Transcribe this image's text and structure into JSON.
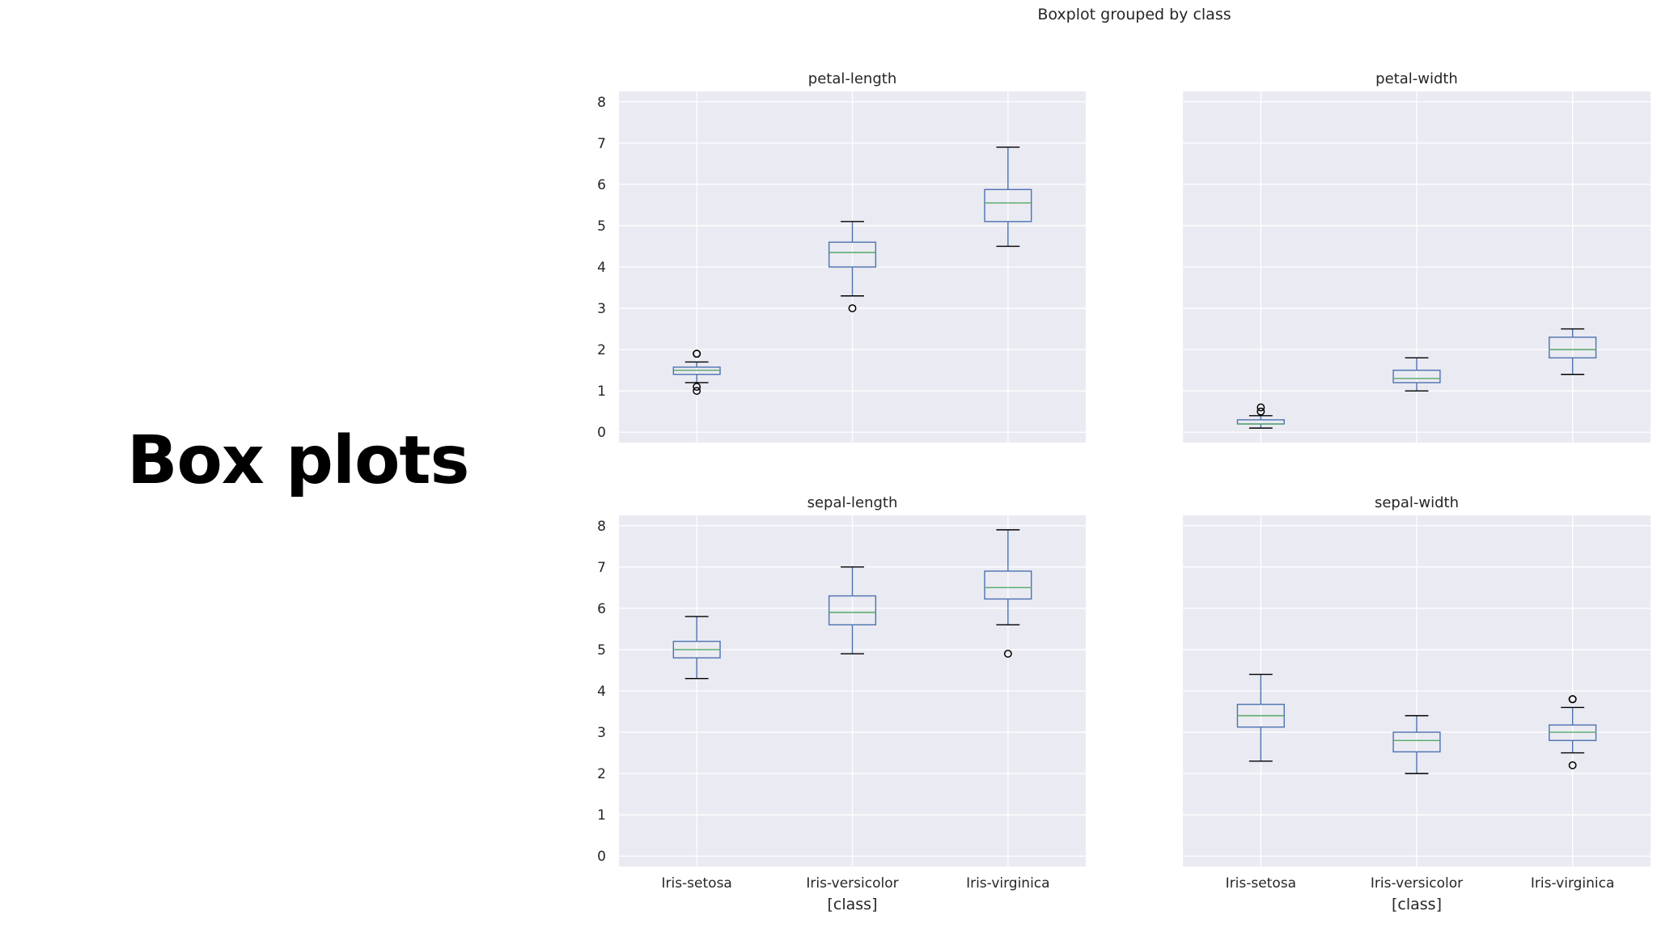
{
  "slide": {
    "title": "Box plots"
  },
  "chart_data": {
    "type": "boxplot",
    "title": "Boxplot grouped by class",
    "xlabel": "[class]",
    "categories": [
      "Iris-setosa",
      "Iris-versicolor",
      "Iris-virginica"
    ],
    "ylim": [
      -0.25,
      8.25
    ],
    "yticks": [
      0,
      1,
      2,
      3,
      4,
      5,
      6,
      7,
      8
    ],
    "sharey": true,
    "grid": true,
    "colors": {
      "background": "#eaeaf2",
      "grid": "#ffffff",
      "box": "#4c72b0",
      "median": "#55a868",
      "whisker_cap": "#000000",
      "flier": "#000000",
      "text": "#262626"
    },
    "panels": [
      {
        "title": "petal-length",
        "boxes": [
          {
            "category": "Iris-setosa",
            "whislo": 1.2,
            "q1": 1.4,
            "med": 1.5,
            "q3": 1.575,
            "whishi": 1.7,
            "fliers": [
              1.0,
              1.1,
              1.9,
              1.9
            ]
          },
          {
            "category": "Iris-versicolor",
            "whislo": 3.3,
            "q1": 4.0,
            "med": 4.35,
            "q3": 4.6,
            "whishi": 5.1,
            "fliers": [
              3.0
            ]
          },
          {
            "category": "Iris-virginica",
            "whislo": 4.5,
            "q1": 5.1,
            "med": 5.55,
            "q3": 5.875,
            "whishi": 6.9,
            "fliers": []
          }
        ]
      },
      {
        "title": "petal-width",
        "boxes": [
          {
            "category": "Iris-setosa",
            "whislo": 0.1,
            "q1": 0.2,
            "med": 0.2,
            "q3": 0.3,
            "whishi": 0.4,
            "fliers": [
              0.5,
              0.6
            ]
          },
          {
            "category": "Iris-versicolor",
            "whislo": 1.0,
            "q1": 1.2,
            "med": 1.3,
            "q3": 1.5,
            "whishi": 1.8,
            "fliers": []
          },
          {
            "category": "Iris-virginica",
            "whislo": 1.4,
            "q1": 1.8,
            "med": 2.0,
            "q3": 2.3,
            "whishi": 2.5,
            "fliers": []
          }
        ]
      },
      {
        "title": "sepal-length",
        "boxes": [
          {
            "category": "Iris-setosa",
            "whislo": 4.3,
            "q1": 4.8,
            "med": 5.0,
            "q3": 5.2,
            "whishi": 5.8,
            "fliers": []
          },
          {
            "category": "Iris-versicolor",
            "whislo": 4.9,
            "q1": 5.6,
            "med": 5.9,
            "q3": 6.3,
            "whishi": 7.0,
            "fliers": []
          },
          {
            "category": "Iris-virginica",
            "whislo": 5.6,
            "q1": 6.225,
            "med": 6.5,
            "q3": 6.9,
            "whishi": 7.9,
            "fliers": [
              4.9
            ]
          }
        ]
      },
      {
        "title": "sepal-width",
        "boxes": [
          {
            "category": "Iris-setosa",
            "whislo": 2.3,
            "q1": 3.125,
            "med": 3.4,
            "q3": 3.675,
            "whishi": 4.4,
            "fliers": []
          },
          {
            "category": "Iris-versicolor",
            "whislo": 2.0,
            "q1": 2.525,
            "med": 2.8,
            "q3": 3.0,
            "whishi": 3.4,
            "fliers": []
          },
          {
            "category": "Iris-virginica",
            "whislo": 2.5,
            "q1": 2.8,
            "med": 3.0,
            "q3": 3.175,
            "whishi": 3.6,
            "fliers": [
              2.2,
              3.8,
              3.8
            ]
          }
        ]
      }
    ]
  }
}
